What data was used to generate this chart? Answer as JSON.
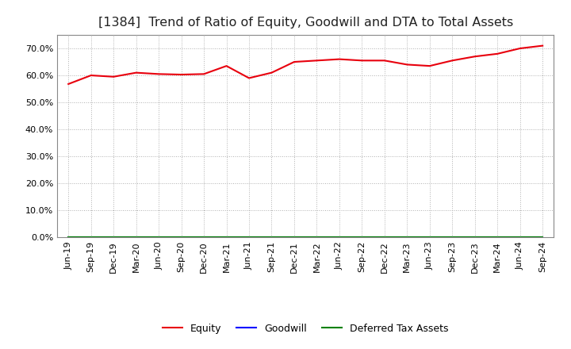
{
  "title": "[1384]  Trend of Ratio of Equity, Goodwill and DTA to Total Assets",
  "x_labels": [
    "Jun-19",
    "Sep-19",
    "Dec-19",
    "Mar-20",
    "Jun-20",
    "Sep-20",
    "Dec-20",
    "Mar-21",
    "Jun-21",
    "Sep-21",
    "Dec-21",
    "Mar-22",
    "Jun-22",
    "Sep-22",
    "Dec-22",
    "Mar-23",
    "Jun-23",
    "Sep-23",
    "Dec-23",
    "Mar-24",
    "Jun-24",
    "Sep-24"
  ],
  "equity": [
    56.8,
    60.0,
    59.5,
    61.0,
    60.5,
    60.3,
    60.5,
    63.5,
    59.0,
    61.0,
    65.0,
    65.5,
    66.0,
    65.5,
    65.5,
    64.0,
    63.5,
    65.5,
    67.0,
    68.0,
    70.0,
    71.0
  ],
  "goodwill": [
    0,
    0,
    0,
    0,
    0,
    0,
    0,
    0,
    0,
    0,
    0,
    0,
    0,
    0,
    0,
    0,
    0,
    0,
    0,
    0,
    0,
    0
  ],
  "dta": [
    0,
    0,
    0,
    0,
    0,
    0,
    0,
    0,
    0,
    0,
    0,
    0,
    0,
    0,
    0,
    0,
    0,
    0,
    0,
    0,
    0,
    0
  ],
  "equity_color": "#e8000d",
  "goodwill_color": "#0000ff",
  "dta_color": "#008000",
  "ylim": [
    0,
    75
  ],
  "yticks": [
    0,
    10,
    20,
    30,
    40,
    50,
    60,
    70
  ],
  "grid_color": "#b0b0b0",
  "background_color": "#ffffff",
  "plot_bg_color": "#ffffff",
  "title_fontsize": 11.5,
  "tick_fontsize": 8,
  "legend_labels": [
    "Equity",
    "Goodwill",
    "Deferred Tax Assets"
  ]
}
